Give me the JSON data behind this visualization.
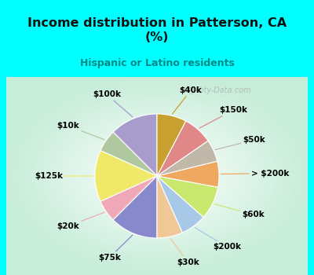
{
  "title": "Income distribution in Patterson, CA\n(%)",
  "subtitle": "Hispanic or Latino residents",
  "bg_cyan": "#00FFFF",
  "watermark": "City-Data.com",
  "labels": [
    "$100k",
    "$10k",
    "$125k",
    "$20k",
    "$75k",
    "$30k",
    "$200k",
    "$60k",
    "> $200k",
    "$50k",
    "$150k",
    "$40k"
  ],
  "values": [
    13,
    6,
    14,
    6,
    13,
    7,
    7,
    9,
    7,
    6,
    8,
    8
  ],
  "colors": [
    "#a89ccc",
    "#b0c8a0",
    "#f0e868",
    "#f0a8b8",
    "#8888cc",
    "#f0c898",
    "#a8c8e8",
    "#c8e870",
    "#f0a860",
    "#c0b8a8",
    "#e08888",
    "#c8a030"
  ],
  "line_colors": [
    "#a89ccc",
    "#b0c8a0",
    "#f0e868",
    "#f0a8b8",
    "#8888cc",
    "#f0c898",
    "#a8c8e8",
    "#c8e870",
    "#f0a860",
    "#c0b8a8",
    "#e08888",
    "#c8a030"
  ]
}
